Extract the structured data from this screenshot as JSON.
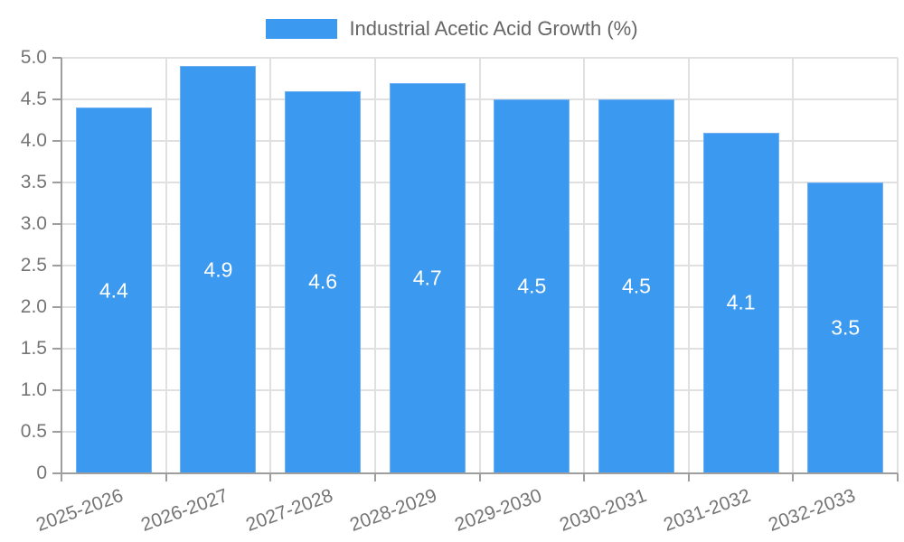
{
  "colors": {
    "background": "#ffffff",
    "bar": "#3b99f0",
    "grid": "#e0e0e0",
    "axis": "#9e9e9e",
    "tick_text": "#757575",
    "legend_text": "#666666",
    "value_label": "#ffffff"
  },
  "legend": {
    "label": "Industrial Acetic Acid Growth (%)"
  },
  "chart_data": {
    "type": "bar",
    "title": "Industrial Acetic Acid Growth (%)",
    "categories": [
      "2025-2026",
      "2026-2027",
      "2027-2028",
      "2028-2029",
      "2029-2030",
      "2030-2031",
      "2031-2032",
      "2032-2033"
    ],
    "values": [
      4.4,
      4.9,
      4.6,
      4.7,
      4.5,
      4.5,
      4.1,
      3.5
    ],
    "value_labels": [
      "4.4",
      "4.9",
      "4.6",
      "4.7",
      "4.5",
      "4.5",
      "4.1",
      "3.5"
    ],
    "legend_entries": [
      "Industrial Acetic Acid Growth (%)"
    ],
    "legend_position": "top-center",
    "xlabel": "",
    "ylabel": "",
    "ylim": [
      0,
      5
    ],
    "ytick_step": 0.5,
    "ytick_labels": [
      "0",
      "0.5",
      "1.0",
      "1.5",
      "2.0",
      "2.5",
      "3.0",
      "3.5",
      "4.0",
      "4.5",
      "5.0"
    ],
    "grid": true,
    "x_label_rotation_deg": -20
  }
}
